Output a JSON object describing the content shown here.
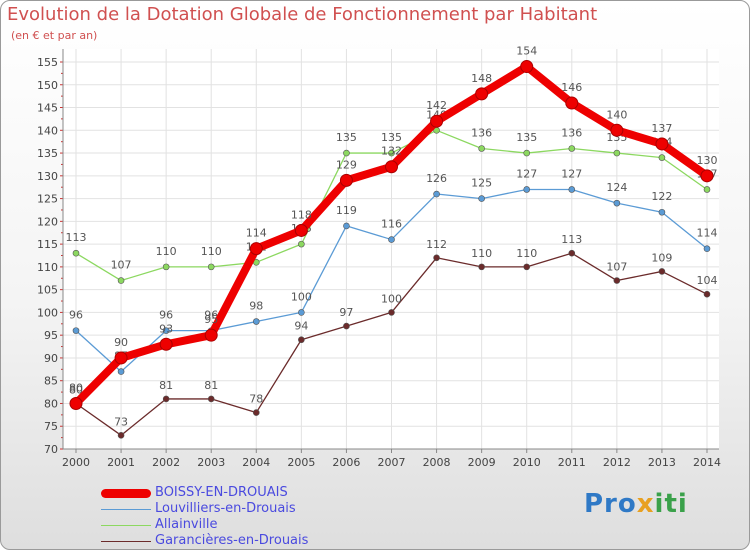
{
  "chart_data": {
    "type": "line",
    "title": "Evolution de la Dotation Globale de Fonctionnement par Habitant",
    "subtitle": "(en € et par an)",
    "xlabel": "",
    "ylabel": "",
    "ylim": [
      70,
      155
    ],
    "yticks": [
      "70",
      "75",
      "80",
      "85",
      "90",
      "95",
      "100",
      "105",
      "110",
      "115",
      "120",
      "125",
      "130",
      "135",
      "140",
      "145",
      "150",
      "155"
    ],
    "categories": [
      "2000",
      "2001",
      "2002",
      "2003",
      "2004",
      "2005",
      "2006",
      "2007",
      "2008",
      "2009",
      "2010",
      "2011",
      "2012",
      "2013",
      "2014"
    ],
    "grid": true,
    "legend": "bottom-left",
    "series": [
      {
        "name": "Garancières-en-Drouais",
        "color": "#6b2b2b",
        "values": [
          80,
          73,
          81,
          81,
          78,
          94,
          97,
          100,
          112,
          110,
          110,
          113,
          107,
          109,
          104
        ]
      },
      {
        "name": "Louvilliers-en-Drouais",
        "color": "#5b9bd5",
        "values": [
          96,
          87,
          96,
          96,
          98,
          100,
          119,
          116,
          126,
          125,
          127,
          127,
          124,
          122,
          114
        ]
      },
      {
        "name": "Allainville",
        "color": "#8cd860",
        "values": [
          113,
          107,
          110,
          110,
          111,
          115,
          135,
          135,
          140,
          136,
          135,
          136,
          135,
          134,
          127
        ]
      },
      {
        "name": "BOISSY-EN-DROUAIS",
        "color": "#ee0000",
        "values": [
          80,
          90,
          93,
          95,
          114,
          118,
          129,
          132,
          142,
          148,
          154,
          146,
          140,
          137,
          130
        ]
      }
    ]
  },
  "legend_items": [
    {
      "name": "BOISSY-EN-DROUAIS",
      "color": "#ee0000"
    },
    {
      "name": "Louvilliers-en-Drouais",
      "color": "#5b9bd5"
    },
    {
      "name": "Allainville",
      "color": "#8cd860"
    },
    {
      "name": "Garancières-en-Drouais",
      "color": "#6b2b2b"
    }
  ],
  "logo": {
    "part1": "Pro",
    "part2": "x",
    "part3": "iti"
  }
}
